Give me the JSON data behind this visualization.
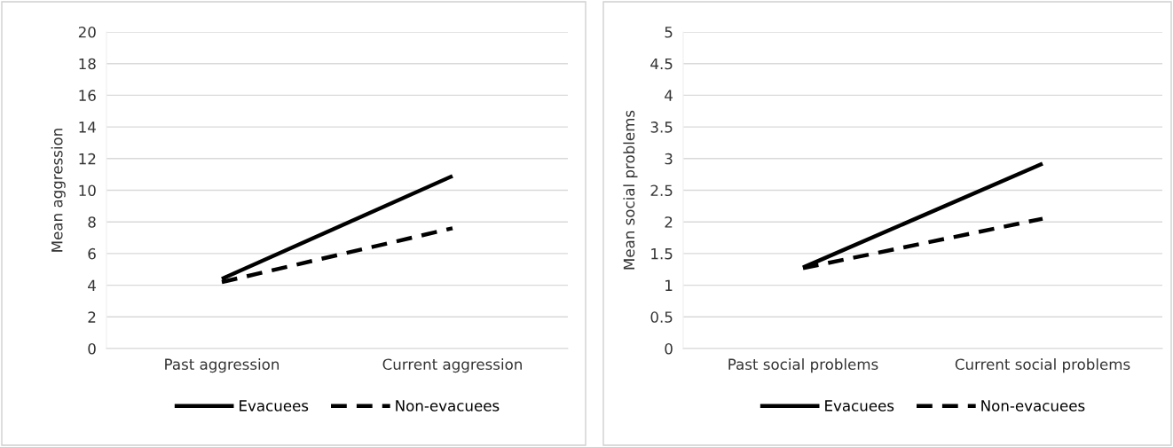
{
  "chart_data": [
    {
      "type": "line",
      "ylabel": "Mean aggression",
      "categories": [
        "Past aggression",
        "Current aggression"
      ],
      "ylim": [
        0,
        20
      ],
      "yticks": [
        0,
        2,
        4,
        6,
        8,
        10,
        12,
        14,
        16,
        18,
        20
      ],
      "grid": "y",
      "legend": "bottom",
      "series": [
        {
          "name": "Evacuees",
          "color": "#000000",
          "line_style": "solid",
          "values": [
            4.4,
            10.9
          ]
        },
        {
          "name": "Non-evacuees",
          "color": "#000000",
          "line_style": "dashed",
          "values": [
            4.2,
            7.6
          ]
        }
      ]
    },
    {
      "type": "line",
      "ylabel": "Mean social problems",
      "categories": [
        "Past social problems",
        "Current social problems"
      ],
      "ylim": [
        0,
        5
      ],
      "yticks": [
        0,
        0.5,
        1,
        1.5,
        2,
        2.5,
        3,
        3.5,
        4,
        4.5,
        5
      ],
      "grid": "y",
      "legend": "bottom",
      "series": [
        {
          "name": "Evacuees",
          "color": "#000000",
          "line_style": "solid",
          "values": [
            1.28,
            2.92
          ]
        },
        {
          "name": "Non-evacuees",
          "color": "#000000",
          "line_style": "dashed",
          "values": [
            1.27,
            2.05
          ]
        }
      ]
    }
  ]
}
